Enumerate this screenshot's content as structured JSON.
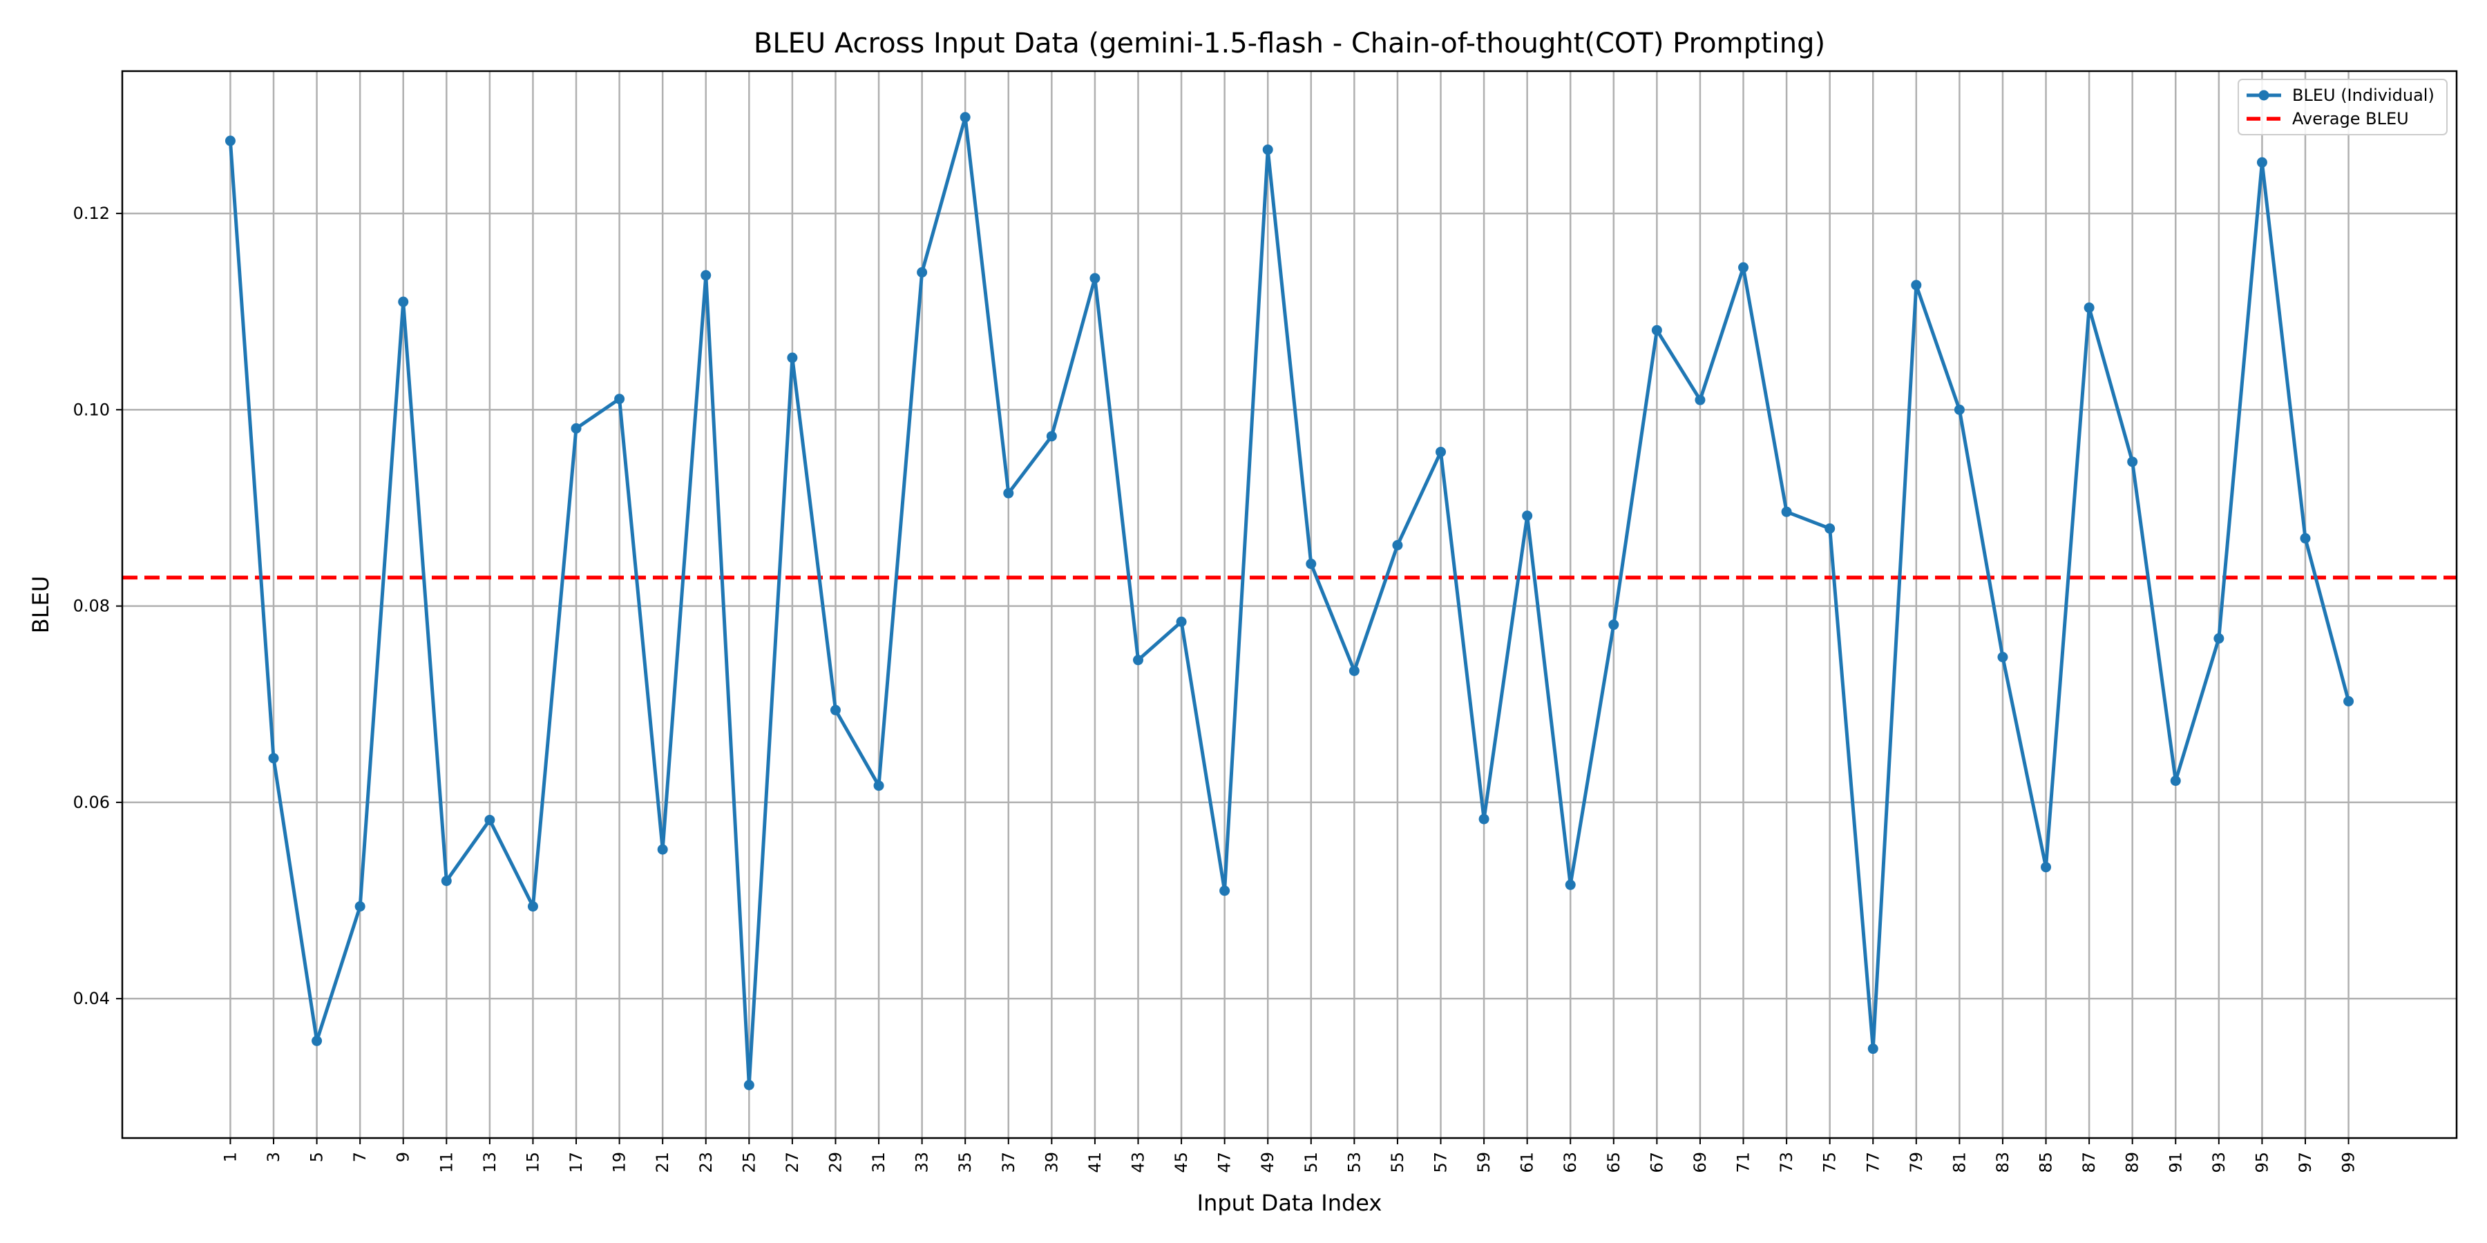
{
  "chart_data": {
    "type": "line",
    "title": "BLEU Across Input Data (gemini-1.5-flash - Chain-of-thought(COT) Prompting)",
    "xlabel": "Input Data Index",
    "ylabel": "BLEU",
    "x": [
      1,
      3,
      5,
      7,
      9,
      11,
      13,
      15,
      17,
      19,
      21,
      23,
      25,
      27,
      29,
      31,
      33,
      35,
      37,
      39,
      41,
      43,
      45,
      47,
      49,
      51,
      53,
      55,
      57,
      59,
      61,
      63,
      65,
      67,
      69,
      71,
      73,
      75,
      77,
      79,
      81,
      83,
      85,
      87,
      89,
      91,
      93,
      95,
      97,
      99
    ],
    "xticks": [
      "1",
      "3",
      "5",
      "7",
      "9",
      "11",
      "13",
      "15",
      "17",
      "19",
      "21",
      "23",
      "25",
      "27",
      "29",
      "31",
      "33",
      "35",
      "37",
      "39",
      "41",
      "43",
      "45",
      "47",
      "49",
      "51",
      "53",
      "55",
      "57",
      "59",
      "61",
      "63",
      "65",
      "67",
      "69",
      "71",
      "73",
      "75",
      "77",
      "79",
      "81",
      "83",
      "85",
      "87",
      "89",
      "91",
      "93",
      "95",
      "97",
      "99"
    ],
    "yticks": [
      "0.04",
      "0.06",
      "0.08",
      "0.10",
      "0.12"
    ],
    "xlim": [
      -4,
      104
    ],
    "ylim": [
      0.0258,
      0.1345
    ],
    "grid": true,
    "legend_position": "top-right",
    "series": [
      {
        "name": "BLEU (Individual)",
        "color": "#1f77b4",
        "marker": "circle",
        "values": [
          0.1274,
          0.0645,
          0.0357,
          0.0494,
          0.111,
          0.052,
          0.0582,
          0.0494,
          0.0981,
          0.1011,
          0.0552,
          0.1137,
          0.0312,
          0.1053,
          0.0694,
          0.0617,
          0.114,
          0.1298,
          0.0915,
          0.0973,
          0.1134,
          0.0745,
          0.0784,
          0.051,
          0.1265,
          0.0843,
          0.0734,
          0.0862,
          0.0957,
          0.0583,
          0.0892,
          0.0516,
          0.0781,
          0.1081,
          0.101,
          0.1145,
          0.0896,
          0.0879,
          0.0349,
          0.1127,
          0.1,
          0.0748,
          0.0534,
          0.1104,
          0.0947,
          0.0622,
          0.0767,
          0.1252,
          0.0869,
          0.0703
        ]
      }
    ],
    "average": {
      "name": "Average BLEU",
      "value": 0.0829,
      "color": "#ff0000",
      "style": "dashed"
    }
  }
}
